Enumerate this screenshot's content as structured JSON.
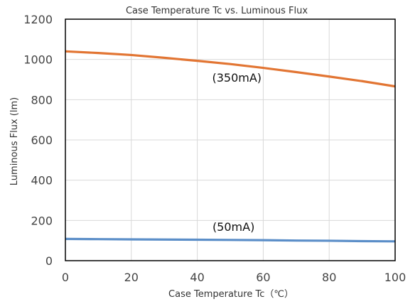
{
  "chart_data": {
    "type": "line",
    "title": "Case Temperature Tc  vs. Luminous Flux",
    "xlabel": "Case Temperature Tc（℃）",
    "ylabel": "Luminous Flux (lm)",
    "xlim": [
      0,
      100
    ],
    "ylim": [
      0,
      1200
    ],
    "xticks": [
      0,
      20,
      40,
      60,
      80,
      100
    ],
    "yticks": [
      0,
      200,
      400,
      600,
      800,
      1000,
      1200
    ],
    "grid": true,
    "x": [
      0,
      10,
      20,
      30,
      40,
      50,
      60,
      70,
      80,
      90,
      100
    ],
    "series": [
      {
        "name": "350mA",
        "color": "#e27533",
        "values": [
          1040,
          1032,
          1022,
          1008,
          993,
          977,
          958,
          937,
          915,
          892,
          866
        ]
      },
      {
        "name": "50mA",
        "color": "#5b8ec8",
        "values": [
          108,
          107,
          106,
          105,
          104,
          103,
          102,
          100,
          99,
          97,
          96
        ]
      }
    ],
    "annotations": [
      {
        "text": "(350mA)",
        "x": 52,
        "y": 890
      },
      {
        "text": "(50mA)",
        "x": 51,
        "y": 148
      }
    ]
  }
}
